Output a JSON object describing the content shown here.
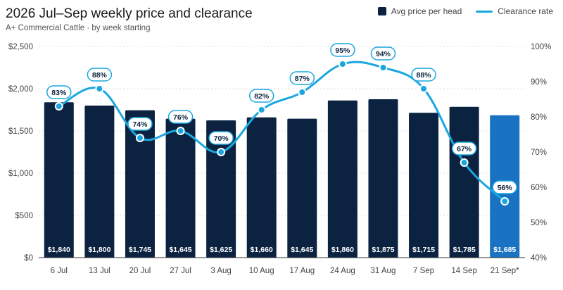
{
  "header": {
    "title": "2026 Jul–Sep weekly price and clearance",
    "subtitle": "A+ Commercial Cattle · by week starting"
  },
  "colors": {
    "bar": "#0b2341",
    "bar_highlight": "#1a73c2",
    "line": "#1aa7e0",
    "grid": "#dddddd",
    "axis": "#333333"
  },
  "chart_data": {
    "type": "bar",
    "categories": [
      "6 Jul",
      "13 Jul",
      "20 Jul",
      "27 Jul",
      "3 Aug",
      "10 Aug",
      "17 Aug",
      "24 Aug",
      "31 Aug",
      "7 Sep",
      "14 Sep",
      "21 Sep*"
    ],
    "series": [
      {
        "name": "Avg price per head",
        "type": "bar",
        "axis": "left",
        "values": [
          1840,
          1800,
          1745,
          1645,
          1625,
          1660,
          1645,
          1860,
          1875,
          1715,
          1785,
          1685
        ],
        "labels": [
          "$1,840",
          "$1,800",
          "$1,745",
          "$1,645",
          "$1,625",
          "$1,660",
          "$1,645",
          "$1,860",
          "$1,875",
          "$1,715",
          "$1,785",
          "$1,685"
        ],
        "highlight_index": 11
      },
      {
        "name": "Clearance rate",
        "type": "line",
        "axis": "right",
        "values": [
          83,
          88,
          74,
          76,
          70,
          82,
          87,
          95,
          94,
          88,
          67,
          56
        ],
        "labels": [
          "83%",
          "88%",
          "74%",
          "76%",
          "70%",
          "82%",
          "87%",
          "95%",
          "94%",
          "88%",
          "67%",
          "56%"
        ]
      }
    ],
    "y_left": {
      "range": [
        0,
        2500
      ],
      "ticks": [
        0,
        500,
        1000,
        1500,
        2000,
        2500
      ],
      "tick_labels": [
        "$0",
        "$500",
        "$1,000",
        "$1,500",
        "$2,000",
        "$2,500"
      ]
    },
    "y_right": {
      "range": [
        40,
        100
      ],
      "ticks": [
        40,
        50,
        60,
        70,
        80,
        90,
        100
      ],
      "tick_labels": [
        "40%",
        "50%",
        "60%",
        "70%",
        "80%",
        "90%",
        "100%"
      ]
    },
    "grid": true,
    "legend_position": "top-right"
  }
}
